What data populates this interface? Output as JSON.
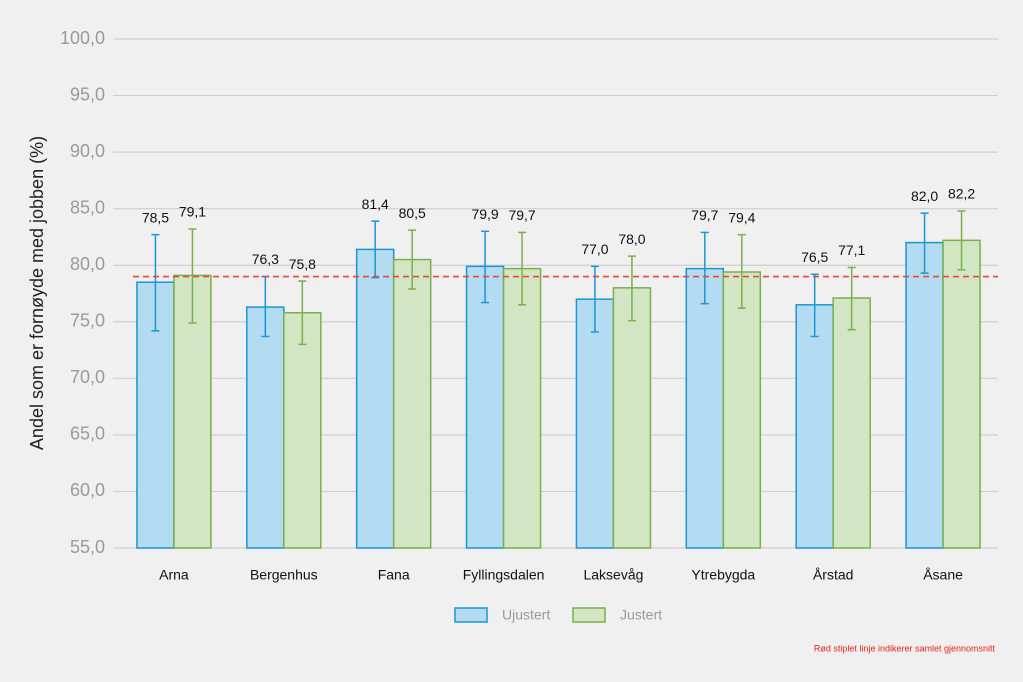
{
  "chart_data": {
    "type": "bar",
    "y_label": "Andel som er fornøyde med jobben (%)",
    "categories": [
      "Arna",
      "Bergenhus",
      "Fana",
      "Fyllingsdalen",
      "Laksevåg",
      "Ytrebygda",
      "Årstad",
      "Åsane"
    ],
    "series": [
      {
        "name": "Ujustert",
        "color": "#1a96d4",
        "fill": "#b3dcf2",
        "values": [
          78.5,
          76.3,
          81.4,
          79.9,
          77.0,
          79.7,
          76.5,
          82.0
        ],
        "value_labels": [
          "78,5",
          "76,3",
          "81,4",
          "79,9",
          "77,0",
          "79,7",
          "76,5",
          "82,0"
        ],
        "error_low": [
          74.2,
          73.7,
          78.9,
          76.7,
          74.1,
          76.6,
          73.7,
          79.3
        ],
        "error_high": [
          82.7,
          79.0,
          83.9,
          83.0,
          79.9,
          82.9,
          79.2,
          84.6
        ]
      },
      {
        "name": "Justert",
        "color": "#78b04a",
        "fill": "#d3e6c4",
        "values": [
          79.1,
          75.8,
          80.5,
          79.7,
          78.0,
          79.4,
          77.1,
          82.2
        ],
        "value_labels": [
          "79,1",
          "75,8",
          "80,5",
          "79,7",
          "78,0",
          "79,4",
          "77,1",
          "82,2"
        ],
        "error_low": [
          74.9,
          73.0,
          77.9,
          76.5,
          75.1,
          76.2,
          74.3,
          79.6
        ],
        "error_high": [
          83.2,
          78.6,
          83.1,
          82.9,
          80.8,
          82.7,
          79.8,
          84.8
        ]
      }
    ],
    "reference_line": {
      "value": 79.0,
      "color": "#e8473a"
    },
    "note": "Rød stiplet linje indikerer samlet gjennomsnitt",
    "ylim": [
      55,
      100
    ],
    "yticks": [
      {
        "value": 55,
        "label": "55,0"
      },
      {
        "value": 60,
        "label": "60,0"
      },
      {
        "value": 65,
        "label": "65,0"
      },
      {
        "value": 70,
        "label": "70,0"
      },
      {
        "value": 75,
        "label": "75,0"
      },
      {
        "value": 80,
        "label": "80,0"
      },
      {
        "value": 85,
        "label": "85,0"
      },
      {
        "value": 90,
        "label": "90,0"
      },
      {
        "value": 95,
        "label": "95,0"
      },
      {
        "value": 100,
        "label": "100,0"
      }
    ],
    "grid": true,
    "legend": "bottom"
  }
}
